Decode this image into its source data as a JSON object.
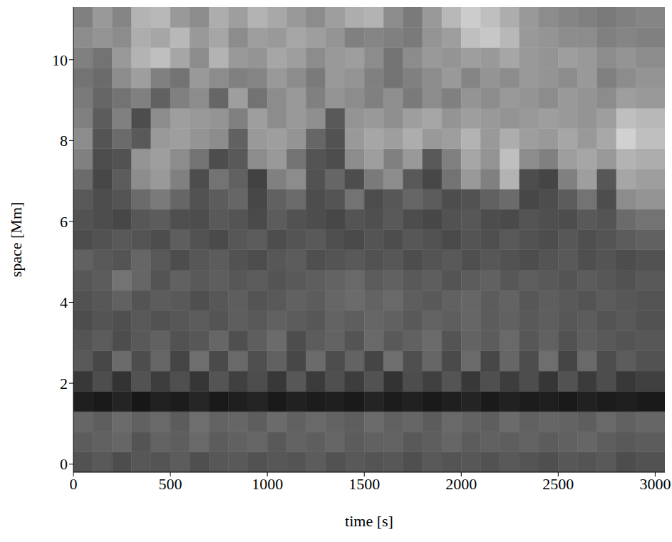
{
  "chart_data": {
    "type": "heatmap",
    "x_label": "time [s]",
    "y_label": "space [Mm]",
    "color": "gray",
    "xlim": [
      0,
      3050
    ],
    "ylim": [
      -0.2,
      11.3
    ],
    "xticks": [
      0,
      500,
      1000,
      1500,
      2000,
      2500,
      3000
    ],
    "yticks": [
      0,
      2,
      4,
      6,
      8,
      10
    ],
    "x_bins": [
      0,
      100,
      200,
      300,
      400,
      500,
      600,
      700,
      800,
      900,
      1000,
      1100,
      1200,
      1300,
      1400,
      1500,
      1600,
      1700,
      1800,
      1900,
      2000,
      2100,
      2200,
      2300,
      2400,
      2500,
      2600,
      2700,
      2800,
      2900,
      3050
    ],
    "y_bins": [
      -0.2,
      0.3,
      0.8,
      1.3,
      1.8,
      2.3,
      2.8,
      3.3,
      3.8,
      4.3,
      4.8,
      5.3,
      5.8,
      6.3,
      6.8,
      7.3,
      7.8,
      8.3,
      8.8,
      9.3,
      9.8,
      10.3,
      10.8,
      11.3
    ],
    "cells": [
      [
        0.32,
        0.35,
        0.3,
        0.34,
        0.33,
        0.36,
        0.31,
        0.34,
        0.35,
        0.32,
        0.34,
        0.33,
        0.36,
        0.32,
        0.35,
        0.33,
        0.34,
        0.31,
        0.35,
        0.33,
        0.34,
        0.32,
        0.35,
        0.33,
        0.31,
        0.34,
        0.33,
        0.35,
        0.3,
        0.32
      ],
      [
        0.36,
        0.38,
        0.4,
        0.33,
        0.39,
        0.37,
        0.41,
        0.36,
        0.38,
        0.4,
        0.35,
        0.39,
        0.37,
        0.4,
        0.36,
        0.38,
        0.39,
        0.35,
        0.37,
        0.4,
        0.36,
        0.38,
        0.37,
        0.39,
        0.36,
        0.38,
        0.4,
        0.37,
        0.35,
        0.36
      ],
      [
        0.4,
        0.37,
        0.42,
        0.38,
        0.41,
        0.36,
        0.43,
        0.39,
        0.4,
        0.37,
        0.42,
        0.38,
        0.41,
        0.39,
        0.37,
        0.42,
        0.38,
        0.4,
        0.36,
        0.41,
        0.39,
        0.37,
        0.42,
        0.38,
        0.4,
        0.39,
        0.37,
        0.41,
        0.38,
        0.4
      ],
      [
        0.12,
        0.1,
        0.14,
        0.09,
        0.13,
        0.11,
        0.15,
        0.1,
        0.12,
        0.14,
        0.1,
        0.13,
        0.11,
        0.12,
        0.1,
        0.14,
        0.11,
        0.13,
        0.1,
        0.12,
        0.14,
        0.1,
        0.13,
        0.11,
        0.12,
        0.1,
        0.13,
        0.11,
        0.12,
        0.1
      ],
      [
        0.22,
        0.3,
        0.2,
        0.32,
        0.24,
        0.31,
        0.21,
        0.33,
        0.25,
        0.3,
        0.22,
        0.34,
        0.23,
        0.31,
        0.24,
        0.32,
        0.2,
        0.3,
        0.25,
        0.33,
        0.22,
        0.31,
        0.24,
        0.3,
        0.21,
        0.32,
        0.23,
        0.3,
        0.22,
        0.25
      ],
      [
        0.35,
        0.28,
        0.42,
        0.3,
        0.4,
        0.27,
        0.43,
        0.29,
        0.41,
        0.31,
        0.38,
        0.28,
        0.42,
        0.3,
        0.39,
        0.27,
        0.43,
        0.31,
        0.4,
        0.29,
        0.42,
        0.28,
        0.4,
        0.3,
        0.43,
        0.27,
        0.41,
        0.3,
        0.36,
        0.32
      ],
      [
        0.33,
        0.36,
        0.3,
        0.35,
        0.38,
        0.32,
        0.34,
        0.4,
        0.31,
        0.37,
        0.42,
        0.3,
        0.36,
        0.39,
        0.33,
        0.41,
        0.35,
        0.38,
        0.42,
        0.33,
        0.39,
        0.36,
        0.41,
        0.34,
        0.38,
        0.32,
        0.37,
        0.35,
        0.33,
        0.34
      ],
      [
        0.3,
        0.33,
        0.31,
        0.35,
        0.32,
        0.34,
        0.36,
        0.33,
        0.37,
        0.35,
        0.38,
        0.36,
        0.34,
        0.39,
        0.37,
        0.4,
        0.38,
        0.35,
        0.39,
        0.37,
        0.4,
        0.36,
        0.38,
        0.35,
        0.37,
        0.34,
        0.36,
        0.33,
        0.35,
        0.32
      ],
      [
        0.32,
        0.34,
        0.38,
        0.33,
        0.36,
        0.35,
        0.31,
        0.34,
        0.37,
        0.33,
        0.35,
        0.38,
        0.36,
        0.4,
        0.42,
        0.39,
        0.41,
        0.37,
        0.35,
        0.38,
        0.4,
        0.36,
        0.39,
        0.34,
        0.37,
        0.35,
        0.33,
        0.36,
        0.34,
        0.33
      ],
      [
        0.34,
        0.36,
        0.45,
        0.4,
        0.33,
        0.38,
        0.35,
        0.37,
        0.34,
        0.36,
        0.33,
        0.35,
        0.37,
        0.39,
        0.41,
        0.36,
        0.38,
        0.35,
        0.37,
        0.33,
        0.36,
        0.38,
        0.34,
        0.37,
        0.35,
        0.33,
        0.36,
        0.34,
        0.32,
        0.35
      ],
      [
        0.38,
        0.35,
        0.33,
        0.4,
        0.35,
        0.3,
        0.34,
        0.36,
        0.32,
        0.3,
        0.34,
        0.36,
        0.31,
        0.33,
        0.35,
        0.32,
        0.34,
        0.3,
        0.33,
        0.35,
        0.31,
        0.34,
        0.32,
        0.3,
        0.33,
        0.35,
        0.31,
        0.33,
        0.3,
        0.32
      ],
      [
        0.3,
        0.32,
        0.35,
        0.33,
        0.3,
        0.37,
        0.32,
        0.29,
        0.34,
        0.36,
        0.3,
        0.33,
        0.35,
        0.31,
        0.29,
        0.33,
        0.3,
        0.34,
        0.32,
        0.29,
        0.33,
        0.31,
        0.35,
        0.32,
        0.3,
        0.34,
        0.31,
        0.33,
        0.36,
        0.38
      ],
      [
        0.32,
        0.3,
        0.28,
        0.34,
        0.36,
        0.31,
        0.3,
        0.35,
        0.33,
        0.29,
        0.36,
        0.32,
        0.3,
        0.28,
        0.33,
        0.31,
        0.35,
        0.3,
        0.28,
        0.32,
        0.34,
        0.3,
        0.29,
        0.33,
        0.31,
        0.3,
        0.35,
        0.33,
        0.42,
        0.45
      ],
      [
        0.35,
        0.3,
        0.33,
        0.42,
        0.48,
        0.4,
        0.32,
        0.36,
        0.4,
        0.28,
        0.38,
        0.42,
        0.3,
        0.33,
        0.45,
        0.3,
        0.34,
        0.4,
        0.36,
        0.3,
        0.32,
        0.38,
        0.42,
        0.28,
        0.3,
        0.36,
        0.45,
        0.3,
        0.55,
        0.58
      ],
      [
        0.42,
        0.28,
        0.36,
        0.55,
        0.6,
        0.5,
        0.3,
        0.45,
        0.38,
        0.26,
        0.5,
        0.55,
        0.32,
        0.4,
        0.3,
        0.48,
        0.55,
        0.35,
        0.28,
        0.45,
        0.6,
        0.5,
        0.7,
        0.3,
        0.27,
        0.5,
        0.62,
        0.34,
        0.65,
        0.62
      ],
      [
        0.5,
        0.3,
        0.32,
        0.58,
        0.62,
        0.55,
        0.45,
        0.3,
        0.35,
        0.55,
        0.6,
        0.45,
        0.33,
        0.3,
        0.55,
        0.62,
        0.5,
        0.6,
        0.35,
        0.5,
        0.65,
        0.58,
        0.75,
        0.55,
        0.5,
        0.62,
        0.65,
        0.6,
        0.7,
        0.68
      ],
      [
        0.55,
        0.33,
        0.42,
        0.35,
        0.6,
        0.62,
        0.58,
        0.55,
        0.38,
        0.6,
        0.62,
        0.58,
        0.4,
        0.32,
        0.6,
        0.65,
        0.62,
        0.68,
        0.6,
        0.62,
        0.7,
        0.6,
        0.68,
        0.62,
        0.6,
        0.65,
        0.6,
        0.66,
        0.82,
        0.75
      ],
      [
        0.5,
        0.36,
        0.5,
        0.3,
        0.55,
        0.62,
        0.6,
        0.58,
        0.5,
        0.62,
        0.55,
        0.6,
        0.56,
        0.35,
        0.58,
        0.6,
        0.56,
        0.62,
        0.65,
        0.58,
        0.62,
        0.6,
        0.58,
        0.6,
        0.62,
        0.6,
        0.58,
        0.62,
        0.75,
        0.72
      ],
      [
        0.48,
        0.4,
        0.45,
        0.5,
        0.38,
        0.5,
        0.55,
        0.4,
        0.62,
        0.45,
        0.55,
        0.6,
        0.5,
        0.58,
        0.55,
        0.5,
        0.56,
        0.48,
        0.55,
        0.5,
        0.58,
        0.55,
        0.6,
        0.58,
        0.55,
        0.6,
        0.58,
        0.55,
        0.62,
        0.6
      ],
      [
        0.45,
        0.42,
        0.55,
        0.62,
        0.5,
        0.45,
        0.6,
        0.55,
        0.5,
        0.52,
        0.6,
        0.55,
        0.48,
        0.6,
        0.58,
        0.5,
        0.45,
        0.5,
        0.55,
        0.6,
        0.52,
        0.58,
        0.55,
        0.6,
        0.58,
        0.55,
        0.6,
        0.5,
        0.55,
        0.58
      ],
      [
        0.5,
        0.45,
        0.6,
        0.7,
        0.75,
        0.65,
        0.55,
        0.7,
        0.6,
        0.58,
        0.65,
        0.62,
        0.55,
        0.6,
        0.62,
        0.55,
        0.45,
        0.55,
        0.6,
        0.58,
        0.62,
        0.6,
        0.65,
        0.6,
        0.58,
        0.62,
        0.6,
        0.55,
        0.58,
        0.55
      ],
      [
        0.55,
        0.58,
        0.55,
        0.68,
        0.65,
        0.72,
        0.6,
        0.65,
        0.55,
        0.62,
        0.6,
        0.65,
        0.62,
        0.58,
        0.5,
        0.52,
        0.5,
        0.48,
        0.58,
        0.62,
        0.75,
        0.78,
        0.72,
        0.6,
        0.58,
        0.55,
        0.55,
        0.5,
        0.52,
        0.5
      ],
      [
        0.5,
        0.6,
        0.52,
        0.7,
        0.72,
        0.6,
        0.55,
        0.68,
        0.62,
        0.7,
        0.66,
        0.6,
        0.55,
        0.62,
        0.68,
        0.7,
        0.55,
        0.48,
        0.6,
        0.72,
        0.8,
        0.75,
        0.68,
        0.6,
        0.55,
        0.52,
        0.5,
        0.48,
        0.5,
        0.52
      ]
    ]
  }
}
